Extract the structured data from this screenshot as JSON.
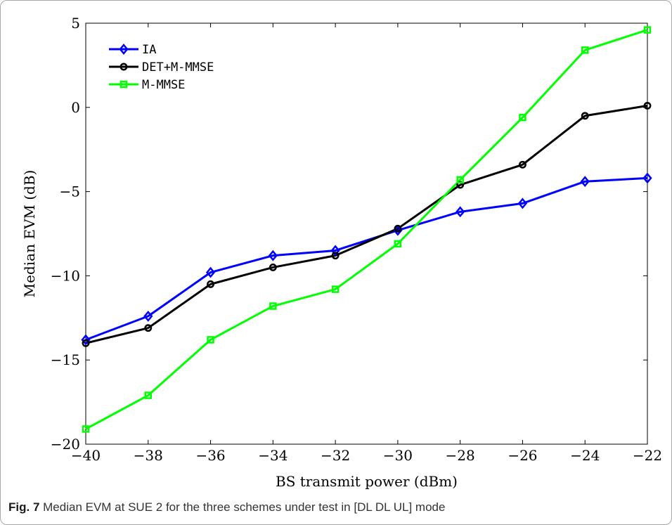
{
  "chart_data": {
    "type": "line",
    "title": "",
    "xlabel": "BS transmit power (dBm)",
    "ylabel": "Median EVM (dB)",
    "xlim": [
      -40,
      -22
    ],
    "ylim": [
      -20,
      5
    ],
    "xticks": [
      -40,
      -38,
      -36,
      -34,
      -32,
      -30,
      -28,
      -26,
      -24,
      -22
    ],
    "yticks": [
      5,
      0,
      -5,
      -10,
      -15,
      -20
    ],
    "x": [
      -40,
      -38,
      -36,
      -34,
      -32,
      -30,
      -28,
      -26,
      -24,
      -22
    ],
    "grid": false,
    "legend_position": "top-left",
    "series": [
      {
        "name": "IA",
        "color": "#0000ff",
        "marker": "diamond",
        "values": [
          -13.8,
          -12.4,
          -9.8,
          -8.8,
          -8.5,
          -7.3,
          -6.2,
          -5.7,
          -4.4,
          -4.2
        ]
      },
      {
        "name": "DET+M-MMSE",
        "color": "#000000",
        "marker": "circle",
        "values": [
          -14.0,
          -13.1,
          -10.5,
          -9.5,
          -8.8,
          -7.2,
          -4.6,
          -3.4,
          -0.5,
          0.1
        ]
      },
      {
        "name": "M-MMSE",
        "color": "#00ff00",
        "marker": "square",
        "values": [
          -19.1,
          -17.1,
          -13.8,
          -11.8,
          -10.8,
          -8.1,
          -4.3,
          -0.6,
          3.4,
          4.6
        ]
      }
    ]
  },
  "caption": {
    "label": "Fig. 7",
    "text": "Median EVM at SUE 2 for the three schemes under test in [DL DL UL] mode"
  }
}
